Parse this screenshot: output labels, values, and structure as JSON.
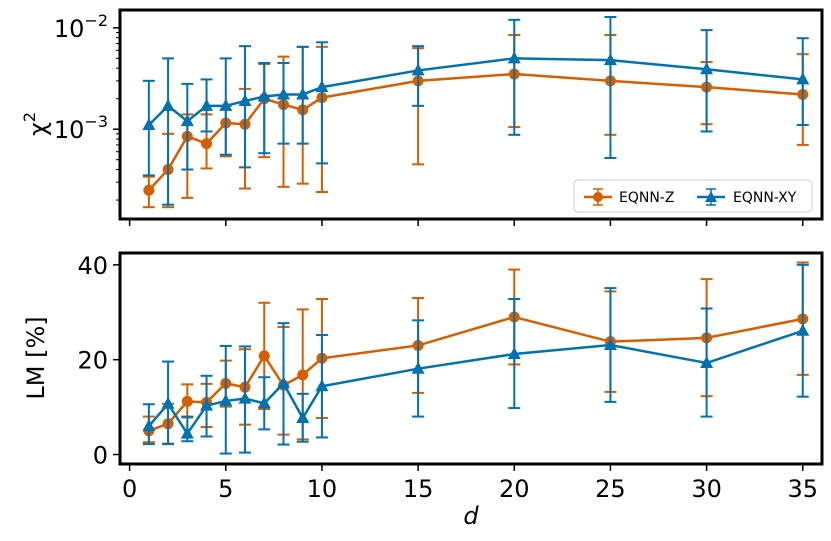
{
  "colors": {
    "eqnn_z": "#D55E00",
    "eqnn_xy": "#0072B2",
    "frame": "#000000"
  },
  "chart_data": [
    {
      "type": "line",
      "panel": "top",
      "yscale": "log",
      "ylabel": "χ",
      "ylabel_superscript": "2",
      "ylim": [
        0.00013,
        0.015
      ],
      "xlim": [
        -0.5,
        36
      ],
      "xticks": [
        0,
        5,
        10,
        15,
        20,
        25,
        30,
        35
      ],
      "yticks": [
        {
          "value": 0.001,
          "base": "10",
          "exp": "−3"
        },
        {
          "value": 0.01,
          "base": "10",
          "exp": "−2"
        }
      ],
      "legend": {
        "position": "lower-right",
        "entries": [
          "EQNN-Z",
          "EQNN-XY"
        ]
      },
      "series": [
        {
          "name": "EQNN-Z",
          "marker": "circle",
          "color_key": "eqnn_z",
          "x": [
            1,
            2,
            3,
            4,
            5,
            6,
            7,
            8,
            9,
            10,
            15,
            20,
            25,
            30,
            35
          ],
          "y": [
            0.00025,
            0.0004,
            0.00085,
            0.00072,
            0.00115,
            0.00112,
            0.002,
            0.00175,
            0.00155,
            0.00205,
            0.003,
            0.0035,
            0.003,
            0.0026,
            0.0022
          ],
          "low": [
            0.00017,
            0.00017,
            0.00021,
            0.00041,
            0.00054,
            0.00026,
            0.00053,
            0.00027,
            0.00029,
            0.00024,
            0.00045,
            0.00105,
            0.00088,
            0.00112,
            0.0007
          ],
          "high": [
            0.00034,
            0.0009,
            0.0014,
            0.0014,
            0.0017,
            0.0025,
            0.0044,
            0.0052,
            0.0065,
            0.0065,
            0.0063,
            0.0085,
            0.0085,
            0.0046,
            0.0055
          ]
        },
        {
          "name": "EQNN-XY",
          "marker": "triangle",
          "color_key": "eqnn_xy",
          "x": [
            1,
            2,
            3,
            4,
            5,
            6,
            7,
            8,
            9,
            10,
            15,
            20,
            25,
            30,
            35
          ],
          "y": [
            0.0011,
            0.0017,
            0.0012,
            0.0017,
            0.0017,
            0.0019,
            0.0021,
            0.0022,
            0.0022,
            0.0026,
            0.0038,
            0.005,
            0.0048,
            0.0039,
            0.0031
          ],
          "low": [
            0.00035,
            0.00018,
            0.0004,
            0.00095,
            0.00056,
            0.00042,
            0.00058,
            0.00072,
            0.00072,
            0.00046,
            0.0017,
            0.00088,
            0.00052,
            0.00095,
            0.0011
          ],
          "high": [
            0.003,
            0.005,
            0.0028,
            0.0031,
            0.005,
            0.0066,
            0.0045,
            0.0045,
            0.0065,
            0.0072,
            0.0066,
            0.012,
            0.0128,
            0.0095,
            0.0079
          ]
        }
      ]
    },
    {
      "type": "line",
      "panel": "bottom",
      "yscale": "linear",
      "xlabel": "d",
      "ylabel": "LM [%]",
      "ylim": [
        -2,
        42.5
      ],
      "xlim": [
        -0.5,
        36
      ],
      "xticks": [
        0,
        5,
        10,
        15,
        20,
        25,
        30,
        35
      ],
      "yticks": [
        0,
        20,
        40
      ],
      "series": [
        {
          "name": "EQNN-Z",
          "marker": "circle",
          "color_key": "eqnn_z",
          "x": [
            1,
            2,
            3,
            4,
            5,
            6,
            7,
            8,
            9,
            10,
            15,
            20,
            25,
            30,
            35
          ],
          "y": [
            5,
            6.5,
            11.2,
            11,
            15,
            14.2,
            20.8,
            14.6,
            16.8,
            20.3,
            23,
            29,
            23.8,
            24.6,
            28.6
          ],
          "low": [
            2.6,
            2.3,
            7.8,
            5.8,
            10.1,
            6.3,
            9.6,
            4.2,
            3.2,
            7.7,
            13,
            19,
            13.2,
            12.3,
            16.8
          ],
          "high": [
            8,
            10.7,
            14.8,
            14.9,
            19.8,
            22.2,
            32,
            26.9,
            30.6,
            32.8,
            33,
            39,
            34.4,
            37,
            40.5
          ]
        },
        {
          "name": "EQNN-XY",
          "marker": "triangle",
          "color_key": "eqnn_xy",
          "x": [
            1,
            2,
            3,
            4,
            5,
            6,
            7,
            8,
            9,
            10,
            15,
            20,
            25,
            30,
            35
          ],
          "y": [
            6,
            10.7,
            4.4,
            10.3,
            11.3,
            11.8,
            10.8,
            15,
            7.7,
            14.4,
            18.1,
            21.2,
            23.1,
            19.3,
            26.1
          ],
          "low": [
            2.2,
            2.2,
            2.8,
            3.8,
            0.2,
            0.4,
            5.3,
            2.1,
            2.7,
            3.6,
            8,
            9.8,
            11.1,
            8,
            12.2
          ],
          "high": [
            10.6,
            19.6,
            8,
            16.6,
            22.9,
            22.8,
            16.3,
            27.7,
            12.8,
            25.2,
            28.3,
            32.8,
            35.1,
            30.8,
            40
          ]
        }
      ]
    }
  ]
}
